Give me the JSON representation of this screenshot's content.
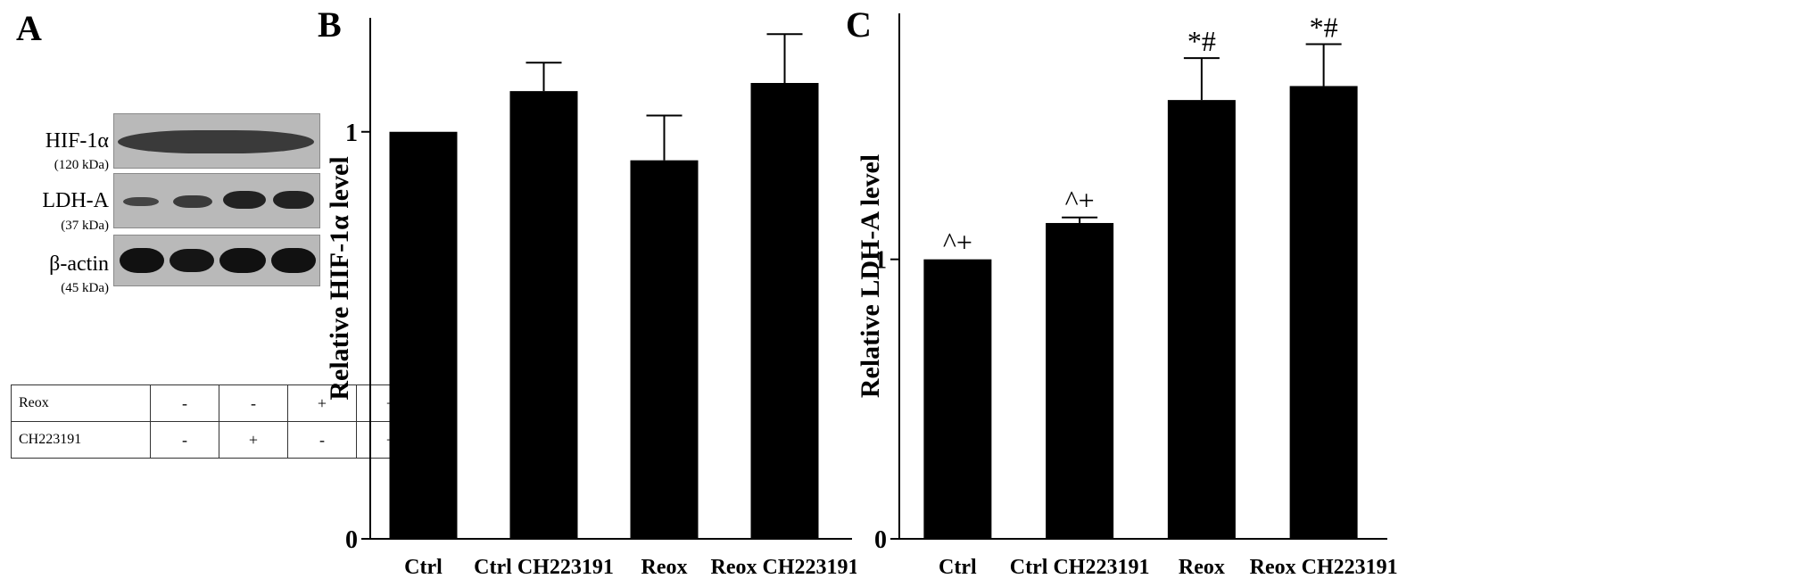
{
  "panels": {
    "a_label": "A",
    "b_label": "B",
    "c_label": "C"
  },
  "blot": {
    "rows": [
      {
        "name": "HIF-1α",
        "mw": "(120 kDa)"
      },
      {
        "name": "LDH-A",
        "mw": "(37 kDa)"
      },
      {
        "name": "β-actin",
        "mw": "(45 kDa)"
      }
    ],
    "conditions": [
      {
        "label": "Reox",
        "values": [
          "-",
          "-",
          "+",
          "+"
        ]
      },
      {
        "label": "CH223191",
        "values": [
          "-",
          "+",
          "-",
          "+"
        ]
      }
    ]
  },
  "chart_data": [
    {
      "type": "bar",
      "ylabel": "Relative HIF-1α level",
      "categories": [
        "Ctrl",
        "Ctrl CH223191",
        "Reox",
        "Reox CH223191"
      ],
      "values": [
        1.0,
        1.1,
        0.93,
        1.12
      ],
      "errors": [
        0.0,
        0.07,
        0.11,
        0.12
      ],
      "annotations": [
        "",
        "",
        "",
        ""
      ],
      "ylim": [
        0,
        1.28
      ],
      "yticks": [
        0,
        1
      ],
      "color": "#000000"
    },
    {
      "type": "bar",
      "ylabel": "Relative LDH-A level",
      "categories": [
        "Ctrl",
        "Ctrl CH223191",
        "Reox",
        "Reox CH223191"
      ],
      "values": [
        1.0,
        1.13,
        1.57,
        1.62
      ],
      "errors": [
        0.0,
        0.02,
        0.15,
        0.15
      ],
      "annotations": [
        "^+",
        "^+",
        "*#",
        "*#"
      ],
      "ylim": [
        0,
        1.88
      ],
      "yticks": [
        0,
        1
      ],
      "color": "#000000"
    }
  ]
}
